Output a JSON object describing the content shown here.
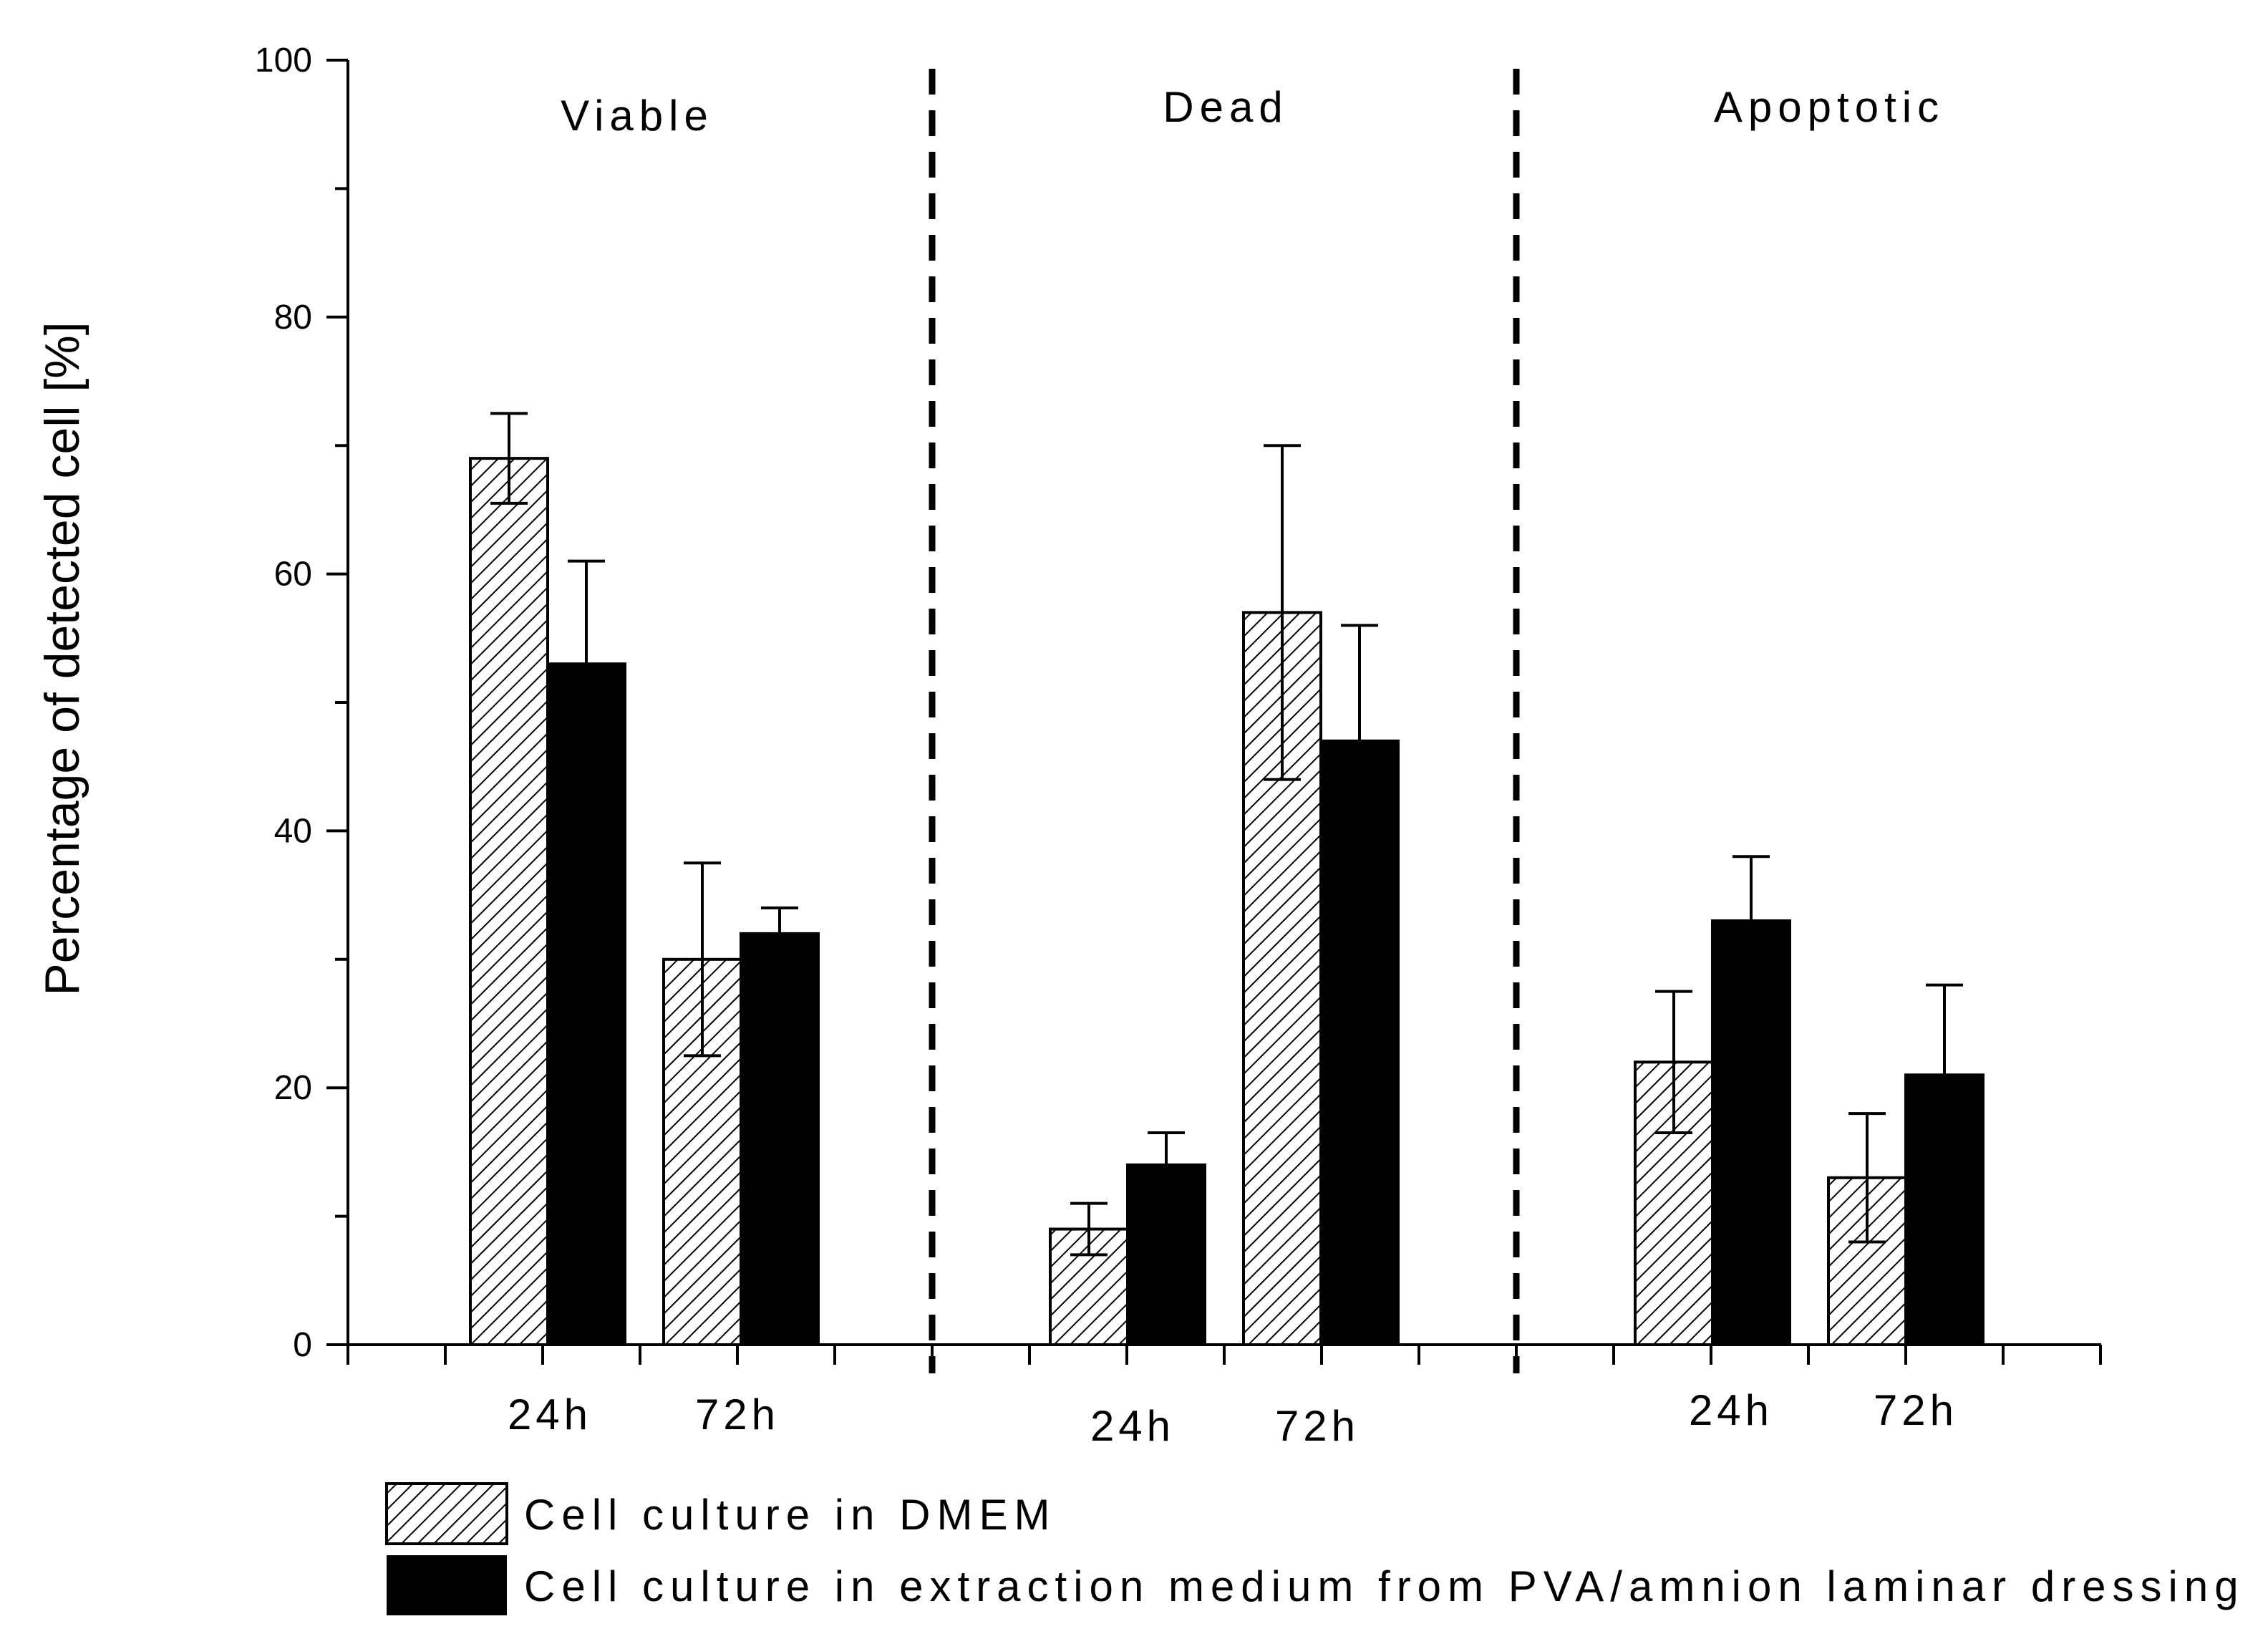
{
  "chart_data": {
    "type": "bar",
    "title": "",
    "xlabel": "",
    "ylabel": "Percentage of detected cell [%]",
    "ylim": [
      0,
      100
    ],
    "yticks": [
      "0",
      "20",
      "40",
      "60",
      "80",
      "100"
    ],
    "grid": false,
    "legend_position": "bottom-left",
    "groups": [
      {
        "name": "Viable",
        "timepoints": [
          "24h",
          "72h"
        ]
      },
      {
        "name": "Dead",
        "timepoints": [
          "24h",
          "72h"
        ]
      },
      {
        "name": "Apoptotic",
        "timepoints": [
          "24h",
          "72h"
        ]
      }
    ],
    "series": [
      {
        "name": "Cell culture in DMEM",
        "pattern": "hatched",
        "values": [
          69,
          30,
          9,
          57,
          22,
          13
        ],
        "errors": [
          3.5,
          7.5,
          2,
          13,
          5.5,
          5
        ]
      },
      {
        "name": "Cell culture in extraction medium from PVA/amnion laminar dressing",
        "pattern": "solid",
        "values": [
          53,
          32,
          14,
          47,
          33,
          21
        ],
        "errors": [
          8,
          2,
          2.5,
          9,
          5,
          7
        ]
      }
    ],
    "colors": {
      "solid": "#000000",
      "hatch": "#000000",
      "background": "#ffffff"
    }
  }
}
